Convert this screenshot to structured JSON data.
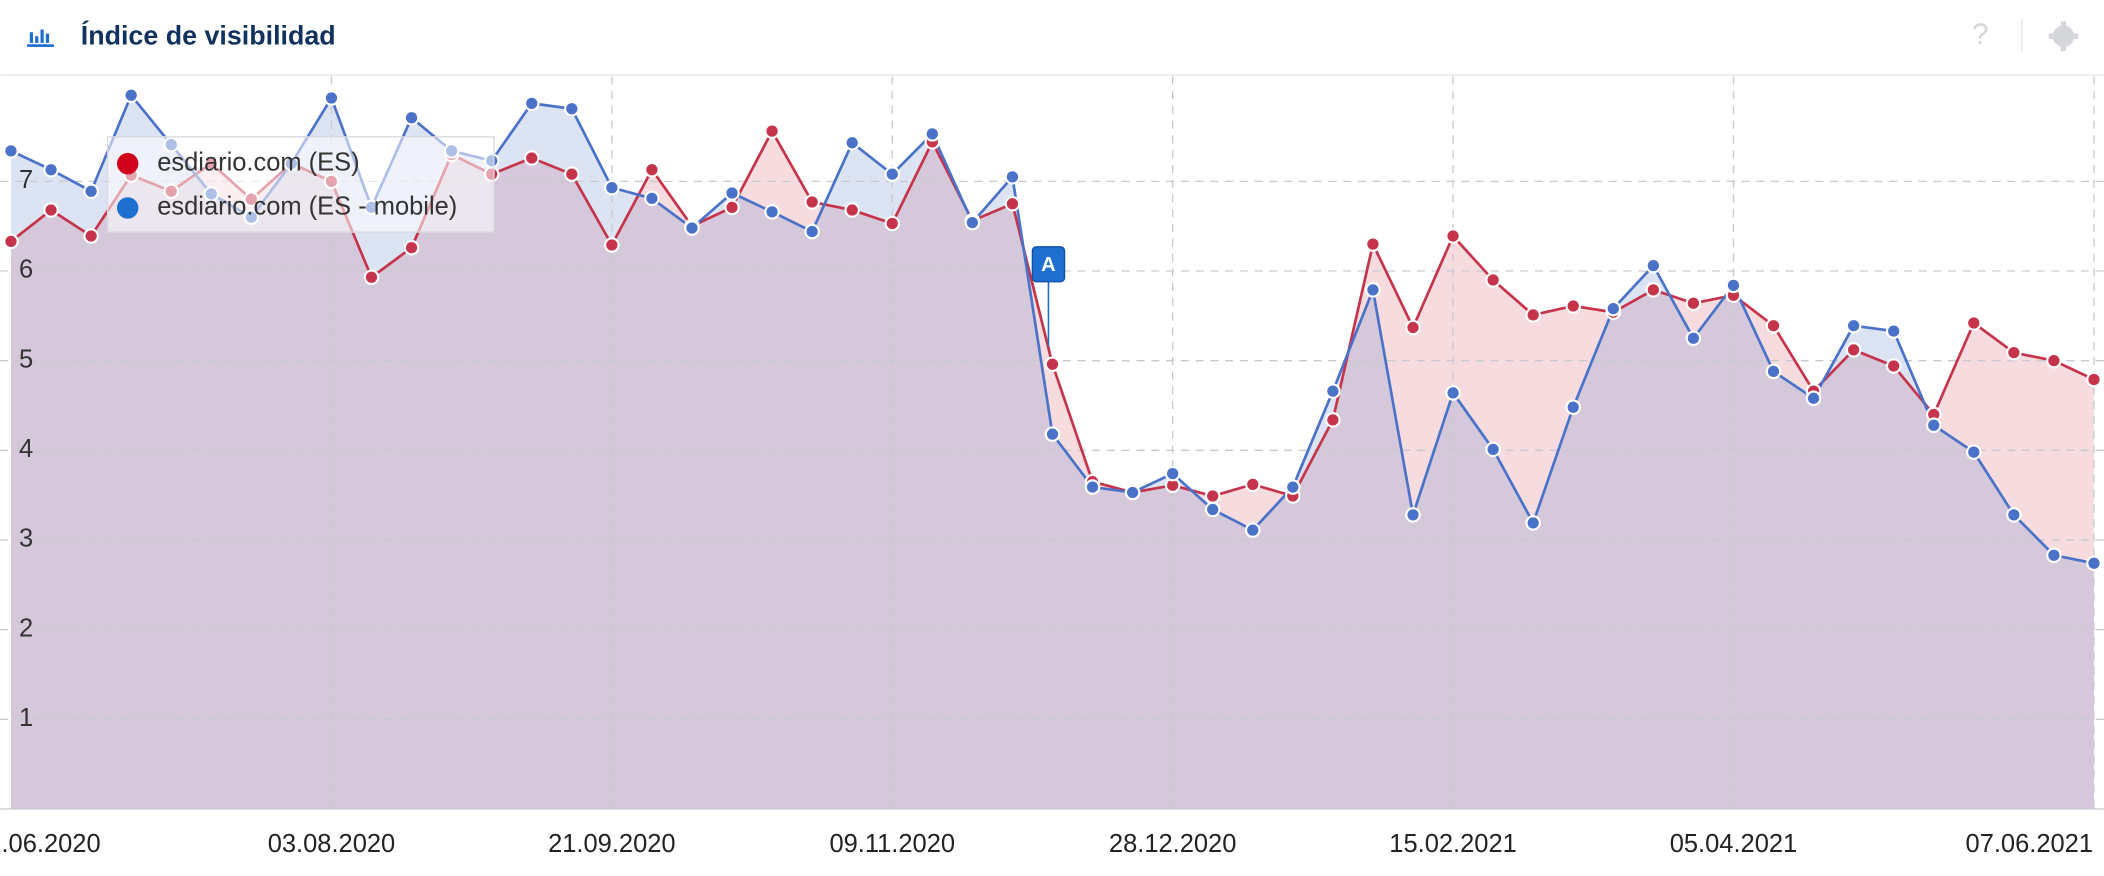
{
  "toolbar": {
    "help": "?"
  },
  "chart_data": {
    "type": "area-line",
    "title": "Índice de visibilidad",
    "annotation": "A",
    "legend": "top-left",
    "grid": true,
    "ylim": [
      0,
      8.17
    ],
    "yticks": [
      1,
      2,
      3,
      4,
      5,
      6,
      7
    ],
    "categories": [
      null,
      ".06.2020",
      null,
      null,
      null,
      null,
      null,
      null,
      "03.08.2020",
      null,
      null,
      null,
      null,
      null,
      null,
      "21.09.2020",
      null,
      null,
      null,
      null,
      null,
      null,
      "09.11.2020",
      null,
      null,
      null,
      null,
      null,
      null,
      "28.12.2020",
      null,
      null,
      null,
      null,
      null,
      null,
      "15.02.2021",
      null,
      null,
      null,
      null,
      null,
      null,
      "05.04.2021",
      null,
      null,
      null,
      null,
      null,
      null,
      null,
      null,
      "07.06.2021"
    ],
    "series": [
      {
        "name": "esdiario.com (ES)",
        "color": "#c5344a",
        "fill": "rgba(222,120,132,0.26)",
        "values": [
          6.33,
          6.68,
          6.39,
          7.07,
          6.89,
          7.2,
          6.8,
          7.2,
          7.0,
          5.93,
          6.26,
          7.3,
          7.08,
          7.26,
          7.08,
          6.29,
          7.13,
          6.5,
          6.71,
          7.56,
          6.77,
          6.68,
          6.53,
          7.44,
          6.56,
          6.75,
          4.96,
          3.65,
          3.53,
          3.61,
          3.49,
          3.62,
          3.49,
          4.34,
          6.3,
          5.37,
          6.39,
          5.9,
          5.51,
          5.61,
          5.54,
          5.79,
          5.64,
          5.73,
          5.39,
          4.66,
          5.12,
          4.94,
          4.4,
          5.42,
          5.09,
          5.0,
          4.79
        ]
      },
      {
        "name": "esdiario.com (ES - mobile)",
        "color": "#4a72c8",
        "fill": "rgba(110,140,205,0.24)",
        "values": [
          7.34,
          7.13,
          6.89,
          7.96,
          7.41,
          6.86,
          6.6,
          7.2,
          7.93,
          6.71,
          7.71,
          7.34,
          7.23,
          7.87,
          7.81,
          6.93,
          6.81,
          6.48,
          6.87,
          6.66,
          6.44,
          7.43,
          7.08,
          7.53,
          6.54,
          7.05,
          4.18,
          3.59,
          3.53,
          3.74,
          3.34,
          3.11,
          3.59,
          4.66,
          5.79,
          3.28,
          4.64,
          4.01,
          3.19,
          4.48,
          5.58,
          6.06,
          5.25,
          5.84,
          4.88,
          4.58,
          5.39,
          5.33,
          4.28,
          3.98,
          3.28,
          2.83,
          2.74
        ]
      }
    ]
  }
}
